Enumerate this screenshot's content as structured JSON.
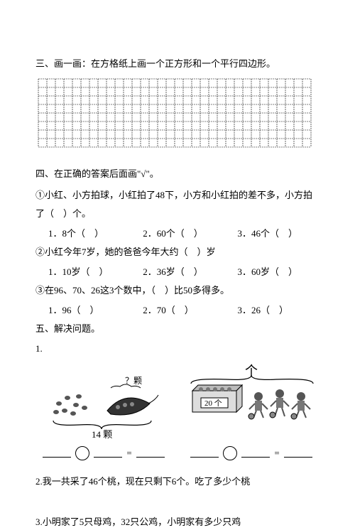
{
  "section3": {
    "title": "三、画一画：在方格纸上画一个正方形和一个平行四边形。",
    "grid": {
      "cols": 32,
      "rows": 8,
      "cell_size": 12,
      "stroke": "#000000",
      "dash": "2,1"
    }
  },
  "section4": {
    "title": "四、在正确的答案后面画\"√\"。",
    "q1": {
      "stem": "①小红、小方拍球，小红拍了48下，小方和小红拍的差不多，小方拍了（　）个。",
      "opts": {
        "a": "1．8个（　）",
        "b": "2．60个（　）",
        "c": "3．46个（　）"
      }
    },
    "q2": {
      "stem": "②小红今年7岁，她的爸爸今年大约（　）岁",
      "opts": {
        "a": "1．10岁（　）",
        "b": "2．36岁（　）",
        "c": "3．60岁（　）"
      }
    },
    "q3": {
      "stem": "③在96、70、26这3个数中，（　）比50多得多。",
      "opts": {
        "a": "1．96（　）",
        "b": "2．70（　）",
        "c": "3．26（　）"
      }
    }
  },
  "section5": {
    "title": "五、解决问题。",
    "p1": {
      "num": "1.",
      "left_total": "14 颗",
      "left_q": "？颗",
      "right_box": "20 个",
      "arrow": "个"
    },
    "p2": {
      "text": "2.我一共采了46个桃，现在只剩下6个。吃了多少个桃"
    },
    "p3": {
      "text": "3.小明家了5只母鸡，32只公鸡，小明家有多少只鸡"
    }
  }
}
